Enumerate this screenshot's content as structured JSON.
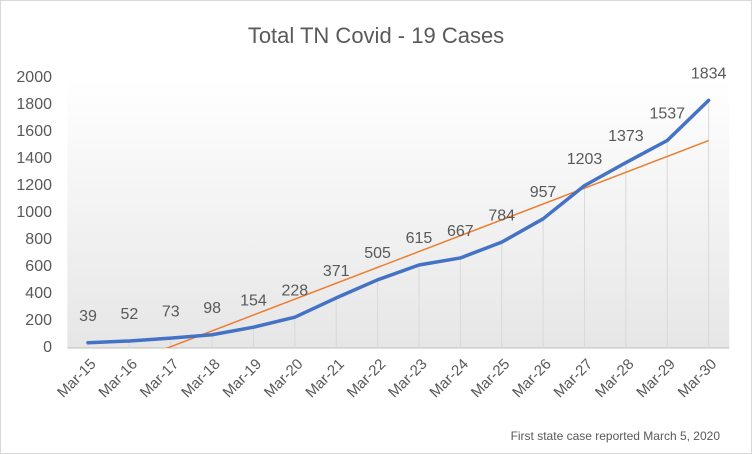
{
  "chart_data": {
    "type": "line",
    "title": "Total TN Covid - 19 Cases",
    "categories": [
      "Mar-15",
      "Mar-16",
      "Mar-17",
      "Mar-18",
      "Mar-19",
      "Mar-20",
      "Mar-21",
      "Mar-22",
      "Mar-23",
      "Mar-24",
      "Mar-25",
      "Mar-26",
      "Mar-27",
      "Mar-28",
      "Mar-29",
      "Mar-30"
    ],
    "series": [
      {
        "name": "Total TN Covid - 19 Cases",
        "color": "#4472c4",
        "values": [
          39,
          52,
          73,
          98,
          154,
          228,
          371,
          505,
          615,
          667,
          784,
          957,
          1203,
          1373,
          1537,
          1834
        ]
      }
    ],
    "trendline": {
      "type": "linear",
      "color": "#ed7d31"
    },
    "ylim": [
      0,
      2000
    ],
    "yticks": [
      0,
      200,
      400,
      600,
      800,
      1000,
      1200,
      1400,
      1600,
      1800,
      2000
    ],
    "drop_lines": true,
    "data_labels": true,
    "annotation": "First state case reported March 5, 2020"
  }
}
